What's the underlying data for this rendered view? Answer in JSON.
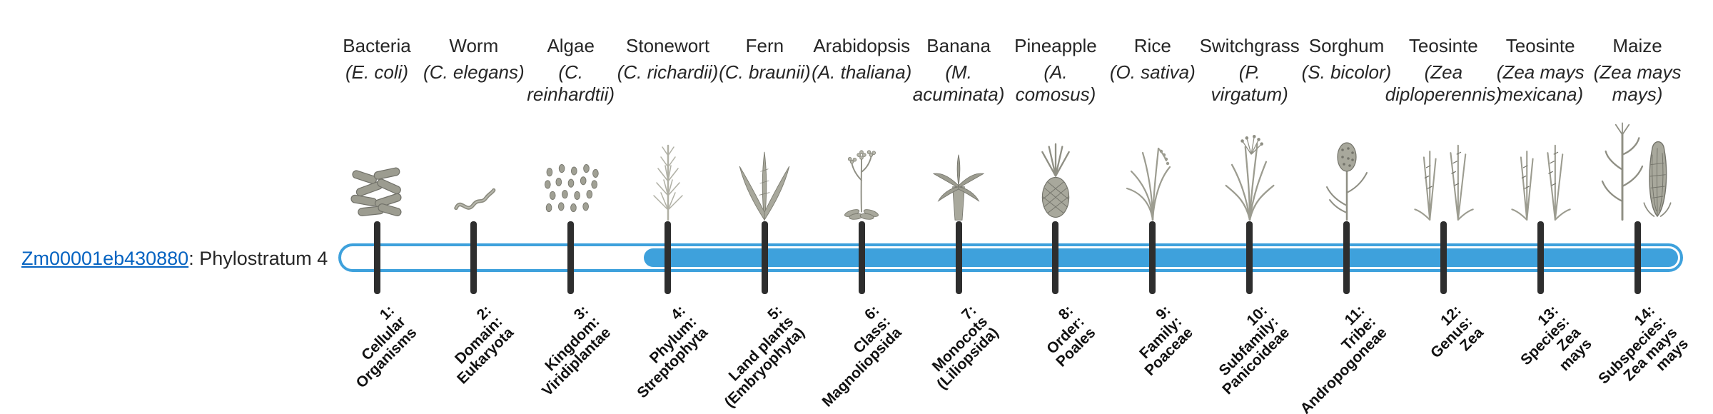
{
  "gene": {
    "id": "Zm00001eb430880",
    "suffix": ": Phylostratum 4"
  },
  "bar": {
    "fill_color": "#3EA1DC",
    "filled_from_stratum": 4,
    "total_strata": 14
  },
  "colors": {
    "bar_blue": "#3EA1DC",
    "tick": "#2e2e2e",
    "link": "#0563C1",
    "illustration_gray": "#9c9c90"
  },
  "columns": [
    {
      "common": "Bacteria",
      "scientific": "(E. coli)",
      "icon": "bacteria",
      "stratum_label": "1:\nCellular\nOrganisms"
    },
    {
      "common": "Worm",
      "scientific": "(C. elegans)",
      "icon": "worm",
      "stratum_label": "2:\nDomain:\nEukaryota"
    },
    {
      "common": "Algae",
      "scientific": "(C.\nreinhardtii)",
      "icon": "algae",
      "stratum_label": "3:\nKingdom:\nViridiplantae"
    },
    {
      "common": "Stonewort",
      "scientific": "(C. richardii)",
      "icon": "stonewort",
      "stratum_label": "4:\nPhylum:\nStreptophyta"
    },
    {
      "common": "Fern",
      "scientific": "(C. braunii)",
      "icon": "fern",
      "stratum_label": "5:\nLand plants\n(Embryophyta)"
    },
    {
      "common": "Arabidopsis",
      "scientific": "(A. thaliana)",
      "icon": "arabidopsis",
      "stratum_label": "6:\nClass:\nMagnoliopsida"
    },
    {
      "common": "Banana",
      "scientific": "(M.\nacuminata)",
      "icon": "banana",
      "stratum_label": "7:\nMonocots\n(Liliopsida)"
    },
    {
      "common": "Pineapple",
      "scientific": "(A.\ncomosus)",
      "icon": "pineapple",
      "stratum_label": "8:\nOrder:\nPoales"
    },
    {
      "common": "Rice",
      "scientific": "(O. sativa)",
      "icon": "rice",
      "stratum_label": "9:\nFamily:\nPoaceae"
    },
    {
      "common": "Switchgrass",
      "scientific": "(P.\nvirgatum)",
      "icon": "switchgrass",
      "stratum_label": "10:\nSubfamily:\nPanicoideae"
    },
    {
      "common": "Sorghum",
      "scientific": "(S. bicolor)",
      "icon": "sorghum",
      "stratum_label": "11:\nTribe:\nAndropogoneae"
    },
    {
      "common": "Teosinte",
      "scientific": "(Zea\ndiploperennis)",
      "icon": "teosinte",
      "stratum_label": "12:\nGenus:\nZea"
    },
    {
      "common": "Teosinte",
      "scientific": "(Zea mays\nmexicana)",
      "icon": "teosinte",
      "stratum_label": "13:\nSpecies:\nZea\nmays"
    },
    {
      "common": "Maize",
      "scientific": "(Zea mays\nmays)",
      "icon": "maize",
      "stratum_label": "14:\nSubspecies:\nZea mays\nmays"
    }
  ]
}
